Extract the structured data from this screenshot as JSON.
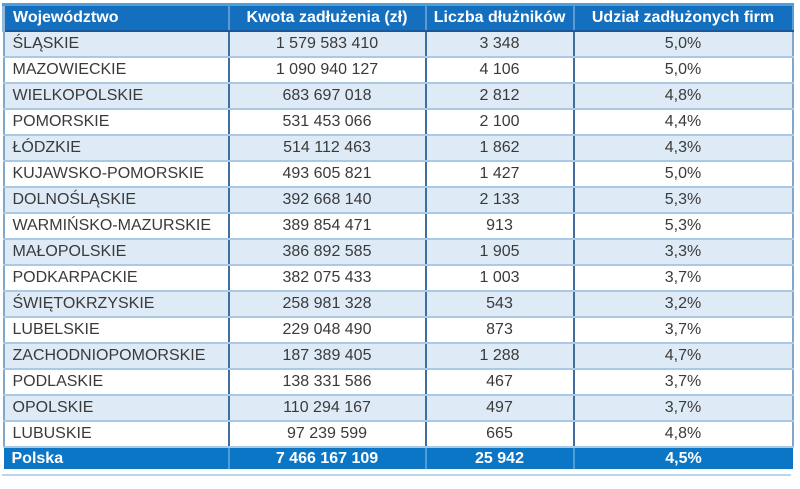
{
  "chart_data": {
    "type": "table",
    "columns": [
      "Województwo",
      "Kwota zadłużenia (zł)",
      "Liczba dłużników",
      "Udział zadłużonych firm"
    ],
    "rows": [
      [
        "ŚLĄSKIE",
        "1 579 583 410",
        "3 348",
        "5,0%"
      ],
      [
        "MAZOWIECKIE",
        "1 090 940 127",
        "4 106",
        "5,0%"
      ],
      [
        "WIELKOPOLSKIE",
        "683 697 018",
        "2 812",
        "4,8%"
      ],
      [
        "POMORSKIE",
        "531 453 066",
        "2 100",
        "4,4%"
      ],
      [
        "ŁÓDZKIE",
        "514 112 463",
        "1 862",
        "4,3%"
      ],
      [
        "KUJAWSKO-POMORSKIE",
        "493 605 821",
        "1 427",
        "5,0%"
      ],
      [
        "DOLNOŚLĄSKIE",
        "392 668 140",
        "2 133",
        "5,3%"
      ],
      [
        "WARMIŃSKO-MAZURSKIE",
        "389 854 471",
        "913",
        "5,3%"
      ],
      [
        "MAŁOPOLSKIE",
        "386 892 585",
        "1 905",
        "3,3%"
      ],
      [
        "PODKARPACKIE",
        "382 075 433",
        "1 003",
        "3,7%"
      ],
      [
        "ŚWIĘTOKRZYSKIE",
        "258 981 328",
        "543",
        "3,2%"
      ],
      [
        "LUBELSKIE",
        "229 048 490",
        "873",
        "3,7%"
      ],
      [
        "ZACHODNIOPOMORSKIE",
        "187 389 405",
        "1 288",
        "4,7%"
      ],
      [
        "PODLASKIE",
        "138 331 586",
        "467",
        "3,7%"
      ],
      [
        "OPOLSKIE",
        "110 294 167",
        "497",
        "3,7%"
      ],
      [
        "LUBUSKIE",
        "97 239 599",
        "665",
        "4,8%"
      ]
    ],
    "total": [
      "Polska",
      "7 466 167 109",
      "25 942",
      "4,5%"
    ],
    "layout_hints": {
      "striped_rows": "odd",
      "first_column_align": "left",
      "other_columns_align": "center"
    }
  },
  "colors": {
    "header_bg": "#1470BE",
    "header_top_edge": "#4FA0D8",
    "header_bottom_border": "#19599B",
    "stripe_row_bg": "#DEEBF7",
    "plain_row_bg": "#FFFFFF",
    "row_border": "#A9C9E4",
    "column_border": "#3F6F9E",
    "total_row_bg": "#0C76C6",
    "header_text": "#FFFFFF",
    "total_text": "#FFFFFF",
    "data_text": "#3A3A3A"
  }
}
